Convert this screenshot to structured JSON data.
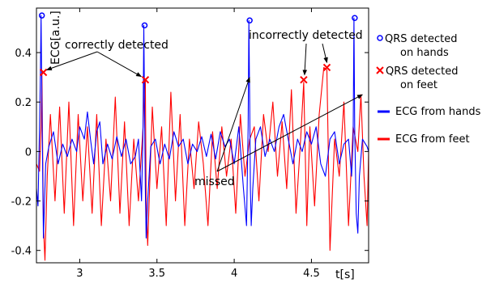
{
  "chart_data": {
    "type": "line",
    "xlabel": "t[s]",
    "ylabel": "ECG[a.u.]",
    "xlim": [
      2.72,
      4.87
    ],
    "ylim": [
      -0.45,
      0.58
    ],
    "xticks": [
      3,
      3.5,
      4,
      4.5
    ],
    "xtick_labels": [
      "3",
      "3.5",
      "4",
      "4.5"
    ],
    "yticks": [
      -0.4,
      -0.2,
      0,
      0.2,
      0.4
    ],
    "ytick_labels": [
      "-0.4",
      "-0.2",
      "0",
      "0.2",
      "0.4"
    ],
    "grid": false,
    "legend_position": "right-outside",
    "colors": {
      "hands": "#0000ff",
      "feet": "#ff0000",
      "axes": "#000000"
    },
    "series": [
      {
        "name": "ECG from hands",
        "x": [
          2.72,
          2.73,
          2.74,
          2.745,
          2.75,
          2.755,
          2.765,
          2.78,
          2.8,
          2.83,
          2.86,
          2.89,
          2.92,
          2.95,
          2.98,
          3.0,
          3.03,
          3.05,
          3.07,
          3.09,
          3.11,
          3.13,
          3.15,
          3.18,
          3.21,
          3.24,
          3.27,
          3.3,
          3.33,
          3.36,
          3.38,
          3.4,
          3.41,
          3.415,
          3.42,
          3.425,
          3.43,
          3.44,
          3.46,
          3.49,
          3.52,
          3.55,
          3.58,
          3.61,
          3.64,
          3.67,
          3.7,
          3.73,
          3.76,
          3.79,
          3.82,
          3.85,
          3.88,
          3.91,
          3.94,
          3.97,
          4.0,
          4.03,
          4.06,
          4.08,
          4.09,
          4.095,
          4.1,
          4.105,
          4.11,
          4.12,
          4.14,
          4.17,
          4.2,
          4.23,
          4.26,
          4.29,
          4.32,
          4.35,
          4.38,
          4.41,
          4.44,
          4.47,
          4.5,
          4.53,
          4.56,
          4.59,
          4.62,
          4.65,
          4.68,
          4.71,
          4.74,
          4.76,
          4.77,
          4.775,
          4.78,
          4.79,
          4.8,
          4.81,
          4.83,
          4.86,
          4.87
        ],
        "y": [
          -0.15,
          -0.22,
          0.1,
          0.3,
          0.55,
          0.2,
          -0.35,
          -0.05,
          0.02,
          0.08,
          -0.05,
          0.03,
          -0.02,
          0.05,
          0.0,
          0.1,
          0.05,
          0.16,
          0.05,
          -0.05,
          0.08,
          0.12,
          -0.05,
          0.03,
          -0.03,
          0.06,
          -0.02,
          0.05,
          -0.05,
          -0.02,
          0.05,
          -0.2,
          0.1,
          0.51,
          0.15,
          -0.15,
          -0.35,
          -0.2,
          0.02,
          0.05,
          -0.05,
          0.03,
          -0.03,
          0.08,
          0.02,
          0.05,
          -0.05,
          0.03,
          0.0,
          0.06,
          -0.02,
          0.07,
          -0.03,
          0.08,
          0.02,
          0.05,
          -0.05,
          0.1,
          -0.15,
          -0.3,
          0.1,
          0.53,
          0.2,
          -0.15,
          -0.3,
          -0.15,
          0.05,
          0.1,
          -0.02,
          0.05,
          0.0,
          0.1,
          0.15,
          0.05,
          -0.05,
          0.05,
          0.0,
          0.08,
          0.03,
          0.1,
          -0.05,
          -0.1,
          0.05,
          0.08,
          -0.05,
          0.03,
          0.05,
          -0.1,
          0.05,
          0.54,
          0.1,
          -0.25,
          -0.33,
          -0.1,
          0.05,
          0.02,
          0.0
        ]
      },
      {
        "name": "ECG from feet",
        "x": [
          2.72,
          2.74,
          2.75,
          2.755,
          2.765,
          2.775,
          2.79,
          2.81,
          2.84,
          2.87,
          2.9,
          2.93,
          2.96,
          2.99,
          3.02,
          3.05,
          3.08,
          3.11,
          3.14,
          3.17,
          3.2,
          3.23,
          3.26,
          3.29,
          3.32,
          3.35,
          3.38,
          3.41,
          3.42,
          3.425,
          3.43,
          3.44,
          3.47,
          3.5,
          3.53,
          3.56,
          3.59,
          3.62,
          3.65,
          3.68,
          3.71,
          3.74,
          3.77,
          3.8,
          3.83,
          3.86,
          3.89,
          3.92,
          3.95,
          3.98,
          4.01,
          4.04,
          4.07,
          4.1,
          4.13,
          4.16,
          4.19,
          4.22,
          4.25,
          4.28,
          4.31,
          4.34,
          4.37,
          4.4,
          4.43,
          4.45,
          4.47,
          4.49,
          4.52,
          4.55,
          4.58,
          4.6,
          4.62,
          4.65,
          4.68,
          4.71,
          4.74,
          4.77,
          4.8,
          4.82,
          4.84,
          4.86,
          4.87
        ],
        "y": [
          -0.05,
          -0.08,
          0.1,
          0.32,
          -0.3,
          -0.44,
          -0.1,
          0.15,
          -0.2,
          0.18,
          -0.25,
          0.2,
          -0.3,
          0.15,
          -0.2,
          0.1,
          -0.25,
          0.15,
          -0.3,
          0.05,
          -0.2,
          0.22,
          -0.25,
          0.12,
          -0.3,
          0.05,
          -0.2,
          0.1,
          0.28,
          0.29,
          -0.2,
          -0.38,
          0.18,
          -0.15,
          0.1,
          -0.3,
          0.24,
          -0.2,
          0.15,
          -0.3,
          0.05,
          -0.15,
          0.12,
          -0.05,
          -0.3,
          0.08,
          -0.15,
          0.1,
          -0.1,
          0.05,
          -0.25,
          0.15,
          -0.1,
          0.05,
          0.1,
          -0.2,
          0.15,
          0.0,
          0.2,
          -0.1,
          0.12,
          -0.15,
          0.25,
          -0.25,
          0.05,
          0.28,
          -0.3,
          0.1,
          -0.22,
          0.15,
          0.34,
          0.33,
          -0.4,
          0.05,
          -0.1,
          0.2,
          -0.3,
          0.1,
          0.0,
          0.23,
          -0.1,
          -0.3,
          0.0
        ]
      }
    ],
    "markers": {
      "hands": {
        "name": "QRS detected on hands",
        "x": [
          2.755,
          3.42,
          4.1,
          4.78
        ],
        "y": [
          0.55,
          0.51,
          0.53,
          0.54
        ]
      },
      "feet": {
        "name": "QRS detected on feet",
        "x": [
          2.765,
          3.425,
          4.45,
          4.6
        ],
        "y": [
          0.32,
          0.29,
          0.29,
          0.34
        ]
      }
    },
    "annotations": {
      "correct": "correctly detected",
      "incorrect": "incorrectly detected",
      "missed": "missed"
    },
    "legend": {
      "hands_detected_line1": "QRS detected",
      "hands_detected_line2": "on hands",
      "feet_detected_line1": "QRS detected",
      "feet_detected_line2": "on feet",
      "hands_line": "ECG from hands",
      "feet_line": "ECG from feet"
    }
  }
}
